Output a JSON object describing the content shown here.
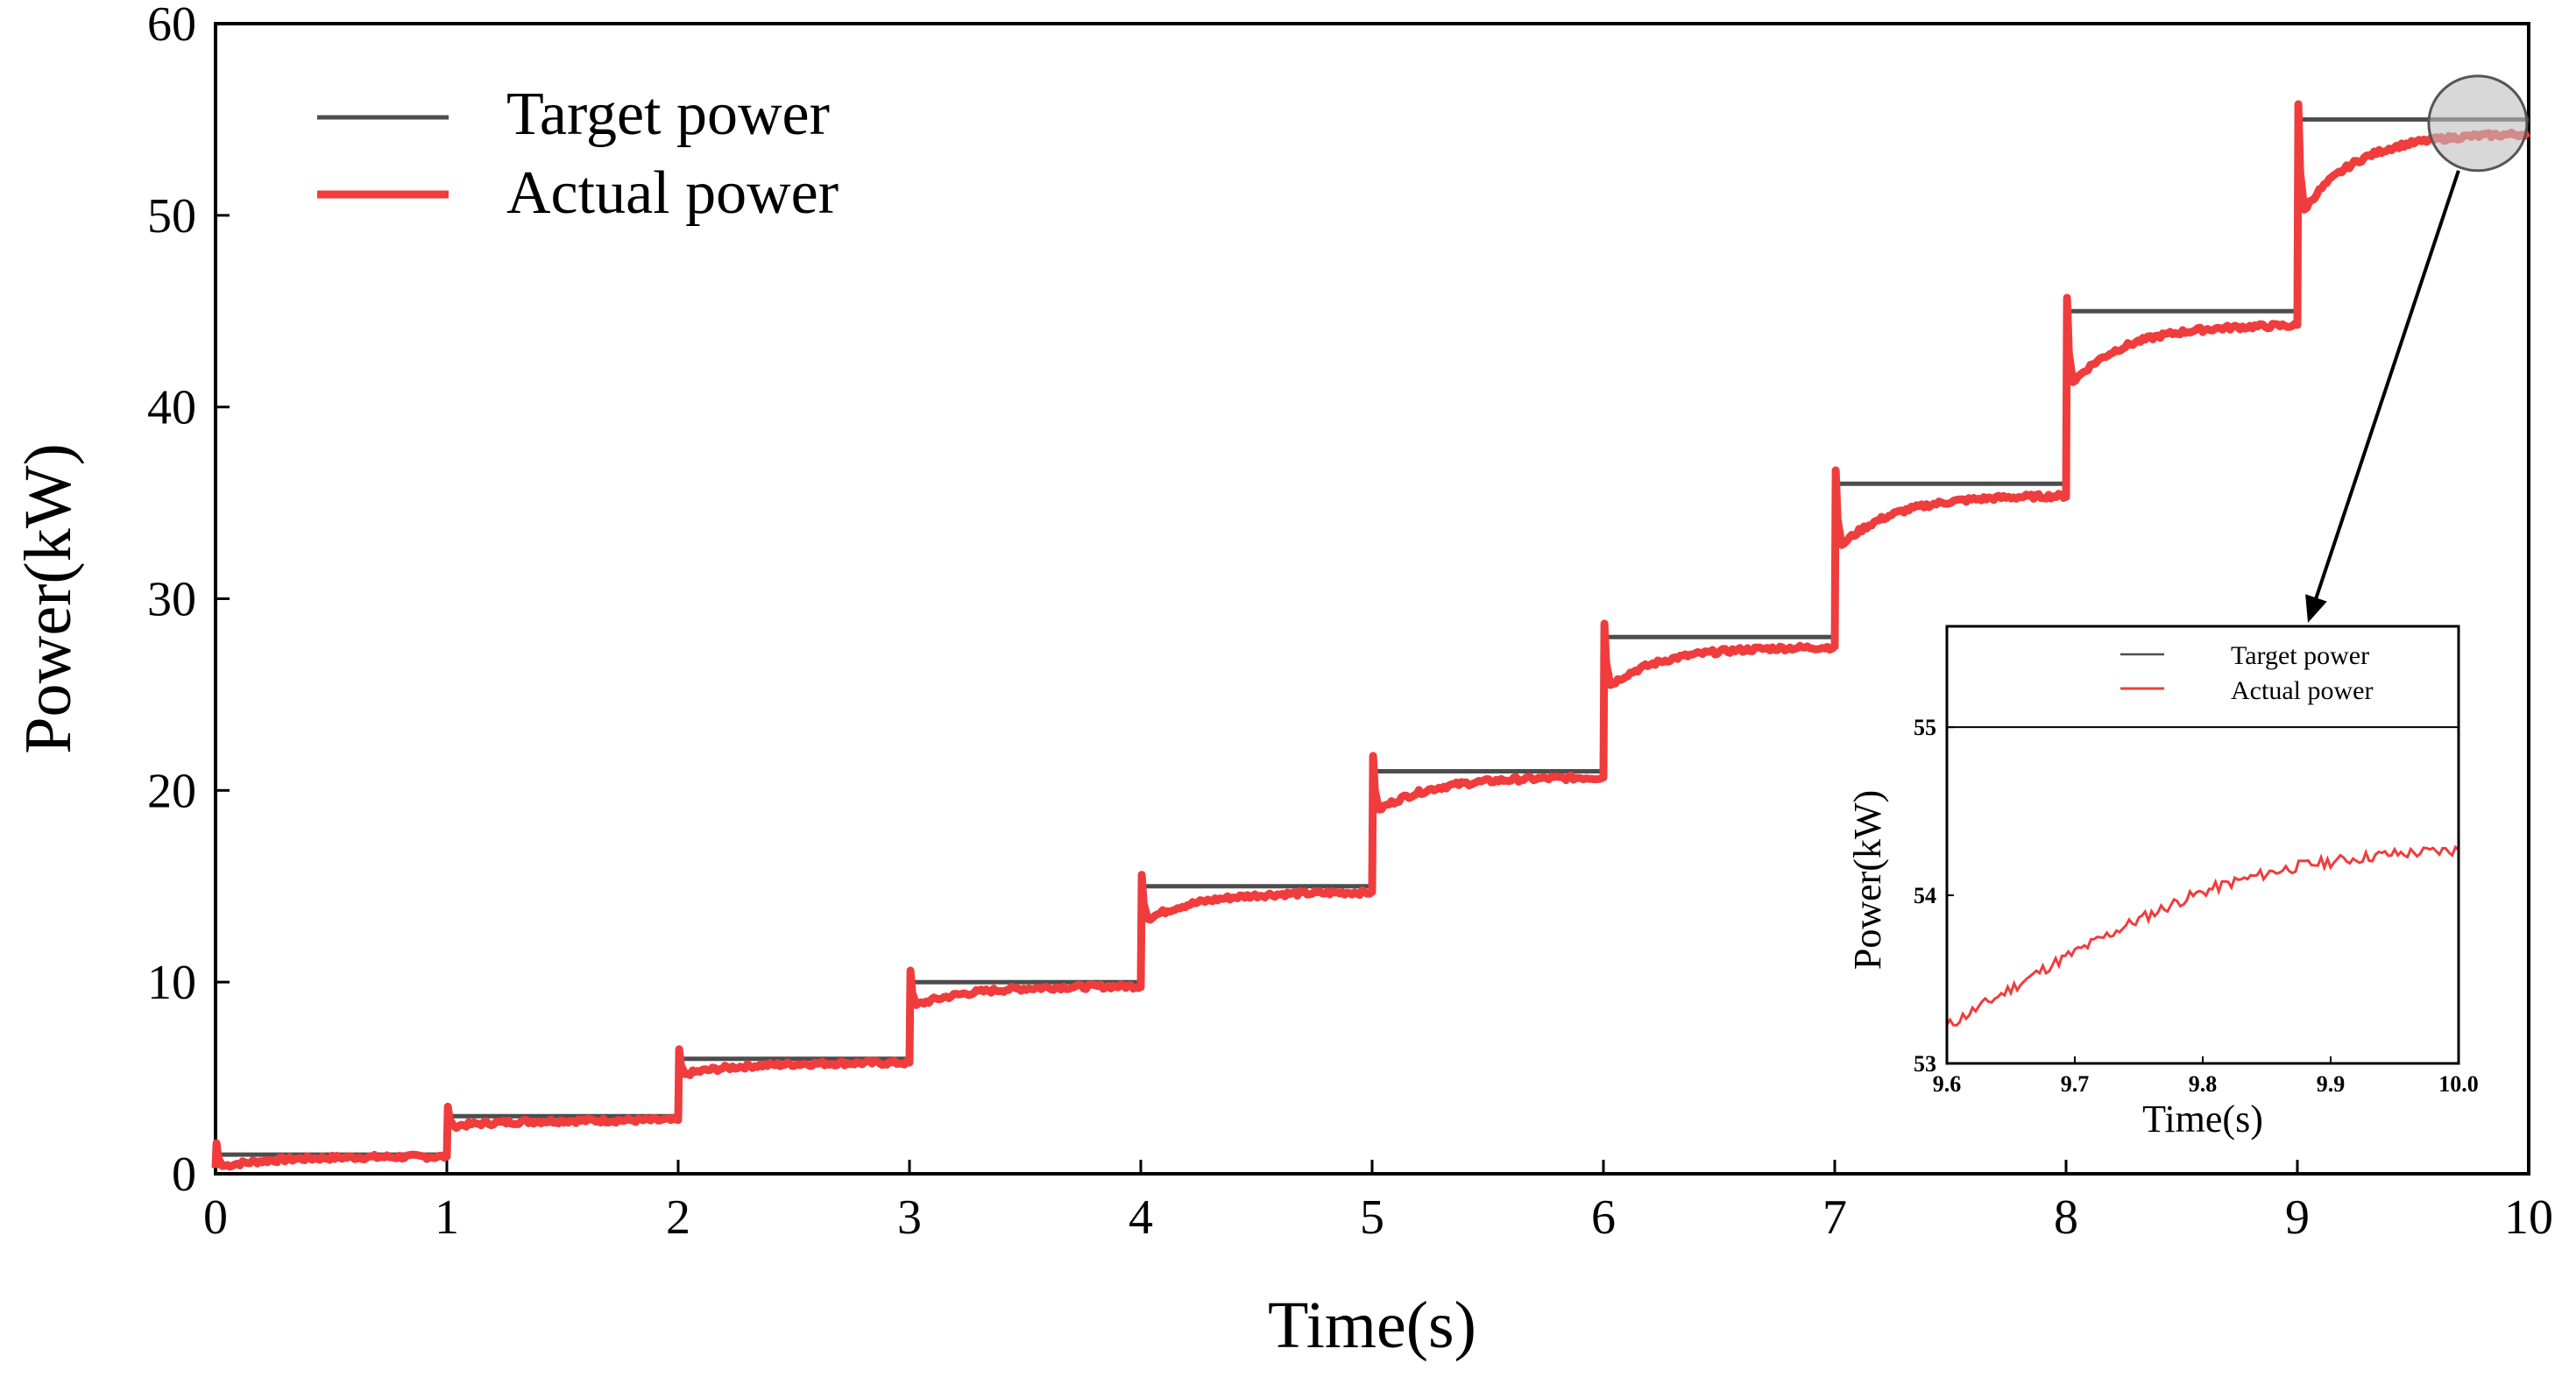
{
  "chart_data": [
    {
      "type": "line",
      "panel": "main",
      "xlabel": "Time(s)",
      "ylabel": "Power(kW)",
      "xlim": [
        0,
        10
      ],
      "ylim": [
        0,
        60
      ],
      "xticks": [
        "0",
        "1",
        "2",
        "3",
        "4",
        "5",
        "6",
        "7",
        "8",
        "9",
        "10"
      ],
      "yticks": [
        "0",
        "10",
        "20",
        "30",
        "40",
        "50",
        "60"
      ],
      "grid": false,
      "legend_position": "top-left",
      "series": [
        {
          "name": "Target power",
          "kind": "step",
          "color": "#4d4d4d",
          "steps": [
            {
              "t_start": 0,
              "t_end": 1,
              "value": 1
            },
            {
              "t_start": 1,
              "t_end": 2,
              "value": 3
            },
            {
              "t_start": 2,
              "t_end": 3,
              "value": 6
            },
            {
              "t_start": 3,
              "t_end": 4,
              "value": 10
            },
            {
              "t_start": 4,
              "t_end": 5,
              "value": 15
            },
            {
              "t_start": 5,
              "t_end": 6,
              "value": 21
            },
            {
              "t_start": 6,
              "t_end": 7,
              "value": 28
            },
            {
              "t_start": 7,
              "t_end": 8,
              "value": 36
            },
            {
              "t_start": 8,
              "t_end": 9,
              "value": 45
            },
            {
              "t_start": 9,
              "t_end": 10,
              "value": 55
            }
          ]
        },
        {
          "name": "Actual power",
          "kind": "response",
          "color": "#f03c3c",
          "segments": [
            {
              "t_start": 0,
              "t_end": 1,
              "start": 0.3,
              "peak": 1.6,
              "dip": 0.4,
              "settle": 0.9
            },
            {
              "t_start": 1,
              "t_end": 2,
              "start": 0.9,
              "peak": 3.5,
              "dip": 2.5,
              "settle": 2.8
            },
            {
              "t_start": 2,
              "t_end": 3,
              "start": 2.8,
              "peak": 6.5,
              "dip": 5.2,
              "settle": 5.8
            },
            {
              "t_start": 3,
              "t_end": 4,
              "start": 5.8,
              "peak": 10.6,
              "dip": 8.8,
              "settle": 9.8
            },
            {
              "t_start": 4,
              "t_end": 5,
              "start": 9.8,
              "peak": 15.6,
              "dip": 13.3,
              "settle": 14.7
            },
            {
              "t_start": 5,
              "t_end": 6,
              "start": 14.7,
              "peak": 21.8,
              "dip": 19.0,
              "settle": 20.7
            },
            {
              "t_start": 6,
              "t_end": 7,
              "start": 20.7,
              "peak": 28.7,
              "dip": 25.5,
              "settle": 27.5
            },
            {
              "t_start": 7,
              "t_end": 8,
              "start": 27.5,
              "peak": 36.7,
              "dip": 32.8,
              "settle": 35.4
            },
            {
              "t_start": 8,
              "t_end": 9,
              "start": 35.4,
              "peak": 45.7,
              "dip": 41.3,
              "settle": 44.3
            },
            {
              "t_start": 9,
              "t_end": 10,
              "start": 44.3,
              "peak": 55.8,
              "dip": 50.3,
              "settle": 54.3
            }
          ]
        }
      ],
      "zoom_region": {
        "x": 9.78,
        "y": 54.8
      }
    },
    {
      "type": "line",
      "panel": "inset",
      "xlabel": "Time(s)",
      "ylabel": "Power(kW)",
      "xlim": [
        9.6,
        10.0
      ],
      "ylim": [
        53,
        55.6
      ],
      "xticks": [
        "9.6",
        "9.7",
        "9.8",
        "9.9",
        "10.0"
      ],
      "yticks": [
        "53",
        "54",
        "55"
      ],
      "grid": false,
      "legend_position": "top-right",
      "series": [
        {
          "name": "Target power",
          "color": "#4d4d4d",
          "x": [
            9.6,
            10.0
          ],
          "y": [
            55,
            55
          ]
        },
        {
          "name": "Actual power",
          "color": "#f03c3c",
          "x": [
            9.6,
            9.62,
            9.64,
            9.66,
            9.68,
            9.7,
            9.72,
            9.74,
            9.76,
            9.78,
            9.8,
            9.82,
            9.84,
            9.86,
            9.88,
            9.9,
            9.92,
            9.94,
            9.96,
            9.98,
            10.0
          ],
          "y": [
            53.22,
            53.31,
            53.4,
            53.49,
            53.58,
            53.66,
            53.74,
            53.82,
            53.89,
            53.96,
            54.02,
            54.07,
            54.11,
            54.15,
            54.18,
            54.2,
            54.22,
            54.24,
            54.25,
            54.26,
            54.27
          ]
        }
      ]
    }
  ]
}
